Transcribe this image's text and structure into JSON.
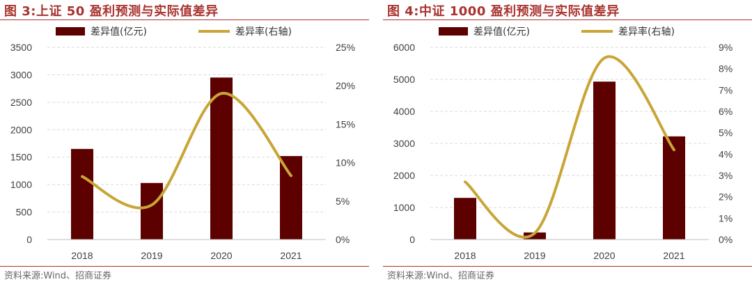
{
  "colors": {
    "bar": "#5c0000",
    "line": "#c9a537",
    "title": "#a8322e",
    "grid": "#d9d9d9"
  },
  "panels": [
    {
      "title": "图 3:上证 50 盈利预测与实际值差异",
      "source": "资料来源:Wind、招商证券",
      "chart_data": {
        "type": "bar",
        "categories": [
          "2018",
          "2019",
          "2020",
          "2021"
        ],
        "series": [
          {
            "name": "差异值(亿元)",
            "type": "bar",
            "axis": "left",
            "values": [
              1650,
              1030,
              2950,
              1520
            ]
          },
          {
            "name": "差异率(右轴)",
            "type": "line",
            "axis": "right",
            "values": [
              8.2,
              4.5,
              19.0,
              8.3
            ]
          }
        ],
        "ylim": [
          0,
          3500
        ],
        "yticks": [
          0,
          500,
          1000,
          1500,
          2000,
          2500,
          3000,
          3500
        ],
        "y2lim": [
          0,
          25
        ],
        "y2ticks": [
          "0%",
          "5%",
          "10%",
          "15%",
          "20%",
          "25%"
        ],
        "grid": true,
        "legend": "top"
      }
    },
    {
      "title": "图 4:中证 1000 盈利预测与实际值差异",
      "source": "资料来源:Wind、招商证券",
      "chart_data": {
        "type": "bar",
        "categories": [
          "2018",
          "2019",
          "2020",
          "2021"
        ],
        "series": [
          {
            "name": "差异值(亿元)",
            "type": "bar",
            "axis": "left",
            "values": [
              1300,
              220,
              4930,
              3220
            ]
          },
          {
            "name": "差异率(右轴)",
            "type": "line",
            "axis": "right",
            "values": [
              2.7,
              0.3,
              8.5,
              4.2
            ]
          }
        ],
        "ylim": [
          0,
          6000
        ],
        "yticks": [
          0,
          1000,
          2000,
          3000,
          4000,
          5000,
          6000
        ],
        "y2lim": [
          0,
          9
        ],
        "y2ticks": [
          "0%",
          "1%",
          "2%",
          "3%",
          "4%",
          "5%",
          "6%",
          "7%",
          "8%",
          "9%"
        ],
        "grid": true,
        "legend": "top"
      }
    }
  ]
}
